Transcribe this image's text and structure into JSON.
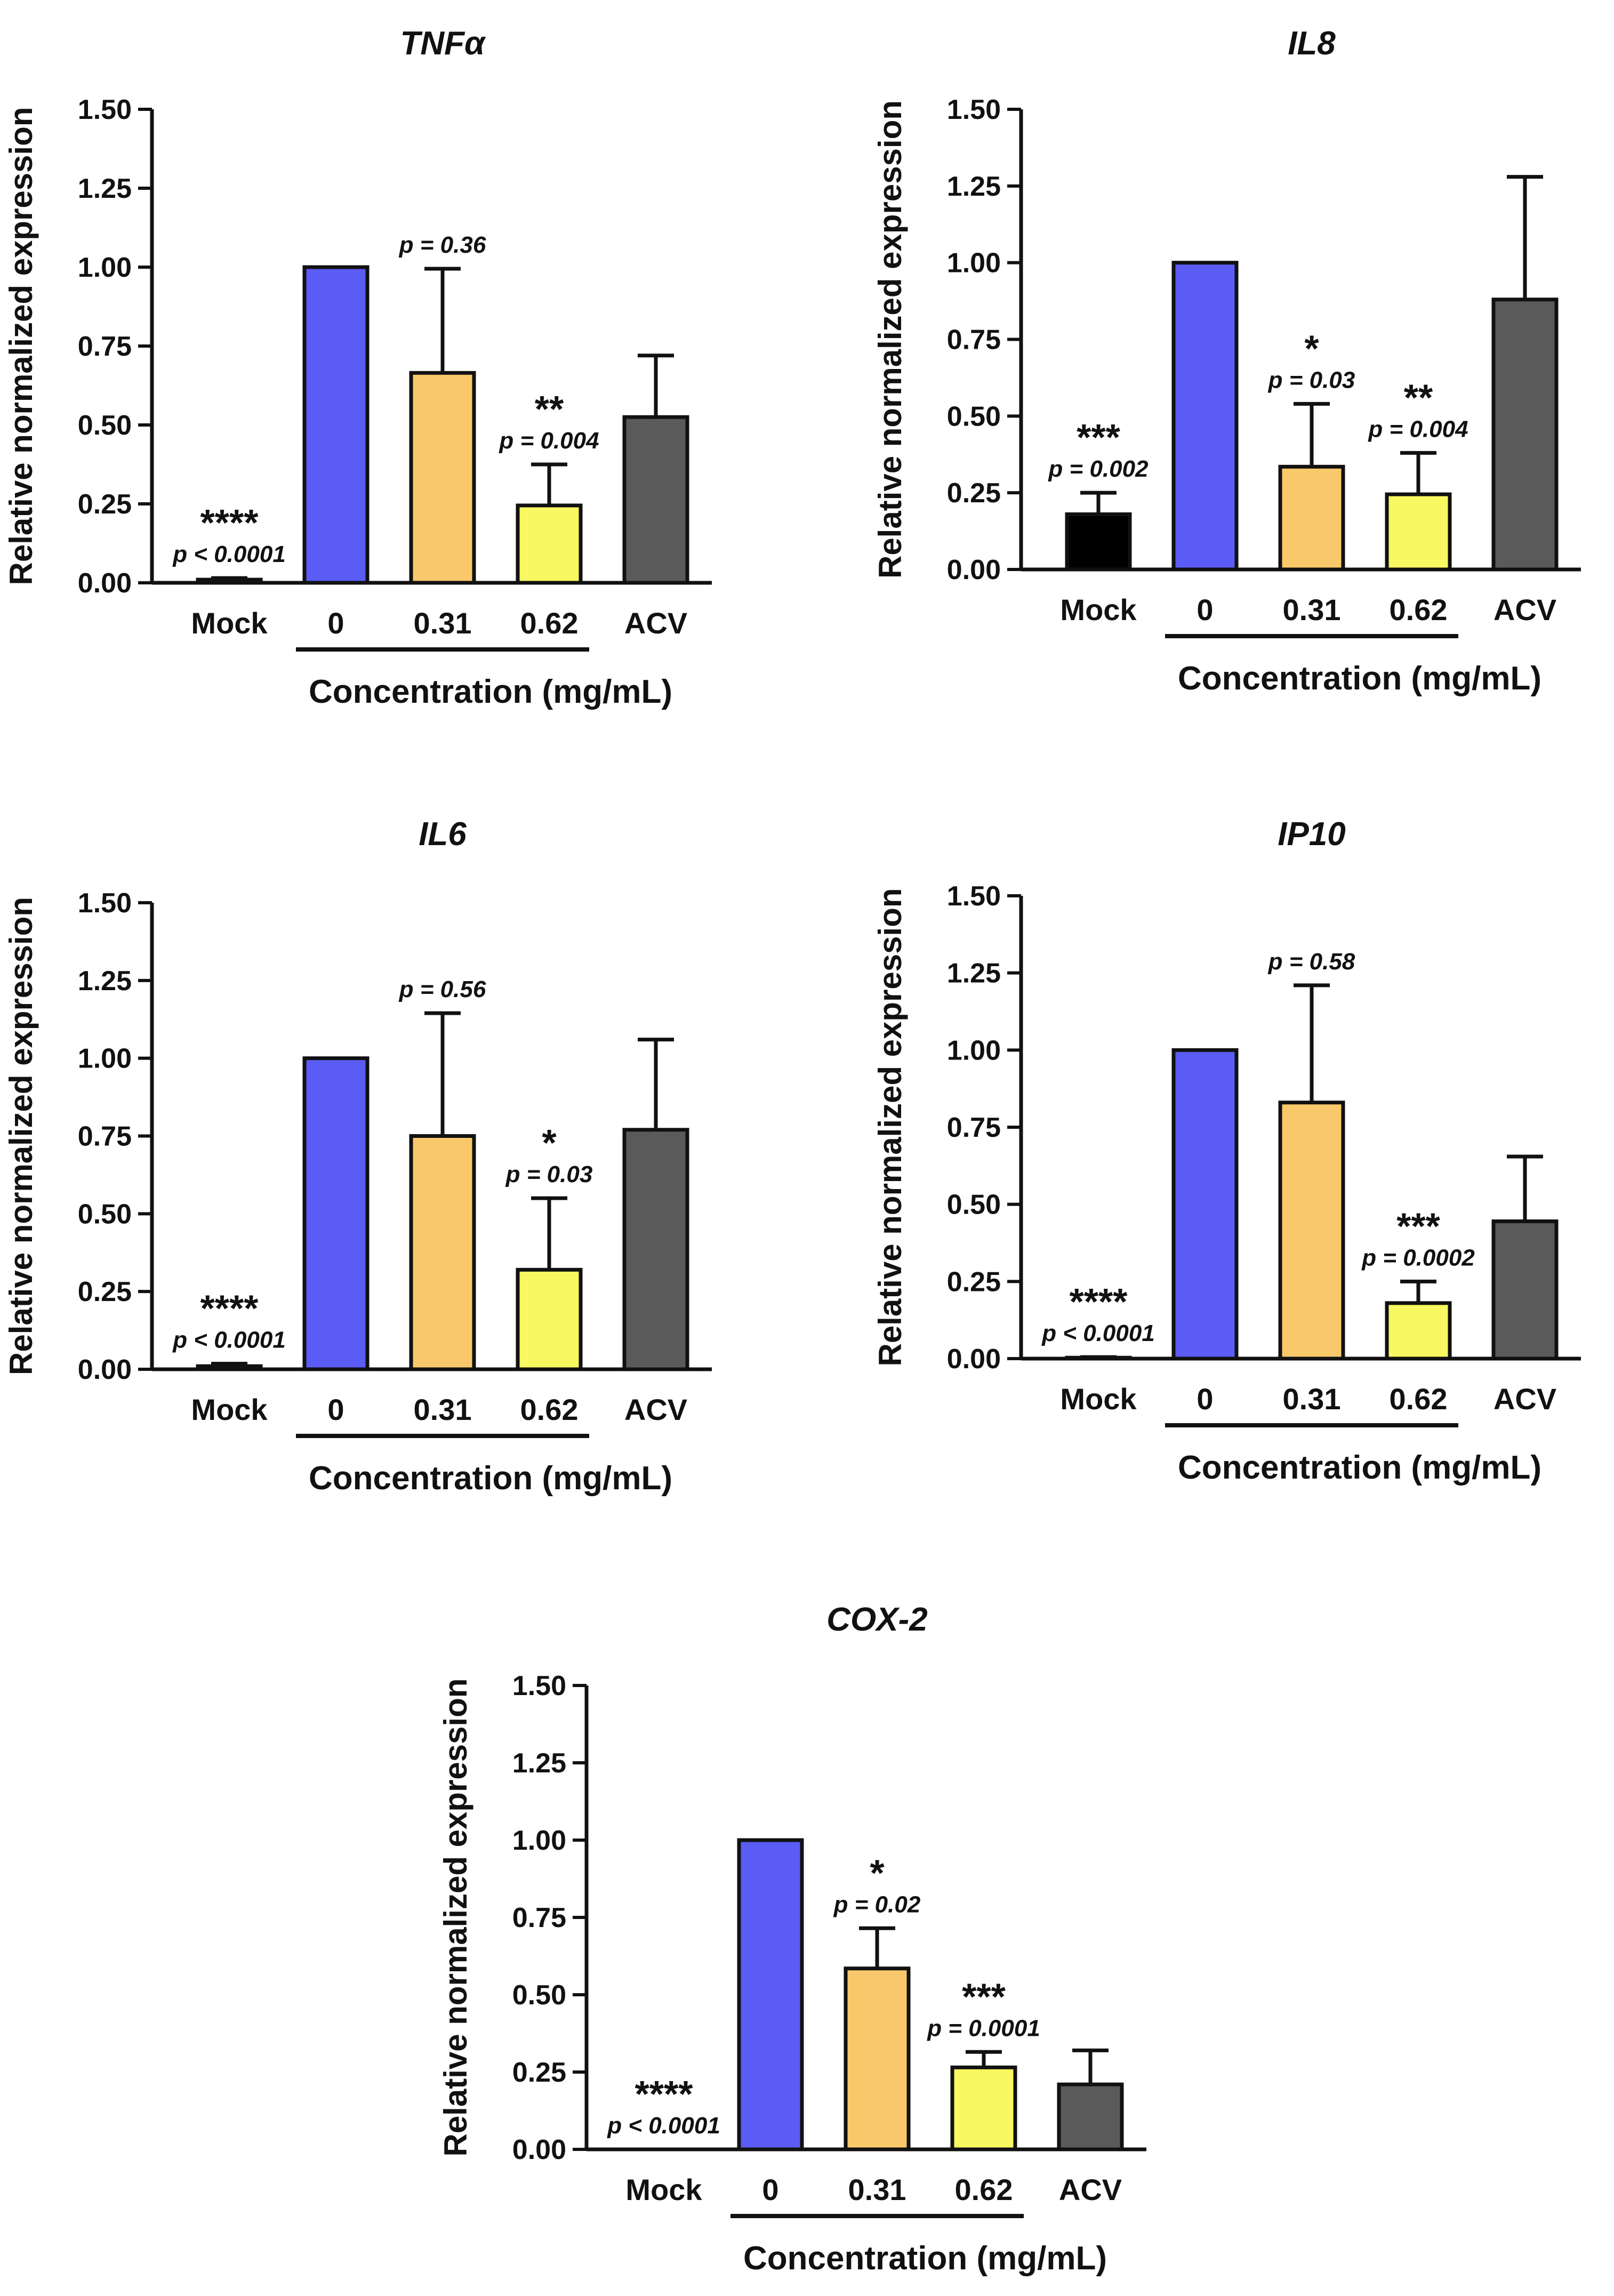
{
  "chart_data": [
    {
      "type": "bar",
      "title": "TNFα",
      "ylabel": "Relative normalized expression",
      "xlabel": "Concentration (mg/mL)",
      "ylim": [
        0,
        1.5
      ],
      "yticks": [
        "0.00",
        "0.25",
        "0.50",
        "0.75",
        "1.00",
        "1.25",
        "1.50"
      ],
      "categories": [
        "Mock",
        "0",
        "0.31",
        "0.62",
        "ACV"
      ],
      "concentration_group": [
        "0",
        "0.31",
        "0.62"
      ],
      "values": [
        0.01,
        1.0,
        0.665,
        0.245,
        0.525
      ],
      "errors": [
        0.005,
        0.0,
        0.33,
        0.13,
        0.195
      ],
      "colors": [
        "#000000",
        "#5b5bf5",
        "#f8c86a",
        "#f8f860",
        "#5a5a5a"
      ],
      "annotations": [
        {
          "category": "Mock",
          "stars": "****",
          "p": "p < 0.0001"
        },
        {
          "category": "0.31",
          "stars": "",
          "p": "p = 0.36"
        },
        {
          "category": "0.62",
          "stars": "**",
          "p": "p = 0.004"
        }
      ]
    },
    {
      "type": "bar",
      "title": "IL8",
      "ylabel": "Relative normalized expression",
      "xlabel": "Concentration (mg/mL)",
      "ylim": [
        0,
        1.5
      ],
      "yticks": [
        "0.00",
        "0.25",
        "0.50",
        "0.75",
        "1.00",
        "1.25",
        "1.50"
      ],
      "categories": [
        "Mock",
        "0",
        "0.31",
        "0.62",
        "ACV"
      ],
      "concentration_group": [
        "0",
        "0.31",
        "0.62"
      ],
      "values": [
        0.18,
        1.0,
        0.335,
        0.245,
        0.88
      ],
      "errors": [
        0.07,
        0.0,
        0.205,
        0.135,
        0.4
      ],
      "colors": [
        "#000000",
        "#5b5bf5",
        "#f8c86a",
        "#f8f860",
        "#5a5a5a"
      ],
      "annotations": [
        {
          "category": "Mock",
          "stars": "***",
          "p": "p = 0.002"
        },
        {
          "category": "0.31",
          "stars": "*",
          "p": "p = 0.03"
        },
        {
          "category": "0.62",
          "stars": "**",
          "p": "p = 0.004"
        }
      ]
    },
    {
      "type": "bar",
      "title": "IL6",
      "ylabel": "Relative normalized expression",
      "xlabel": "Concentration (mg/mL)",
      "ylim": [
        0,
        1.5
      ],
      "yticks": [
        "0.00",
        "0.25",
        "0.50",
        "0.75",
        "1.00",
        "1.25",
        "1.50"
      ],
      "categories": [
        "Mock",
        "0",
        "0.31",
        "0.62",
        "ACV"
      ],
      "concentration_group": [
        "0",
        "0.31",
        "0.62"
      ],
      "values": [
        0.01,
        1.0,
        0.75,
        0.32,
        0.77
      ],
      "errors": [
        0.008,
        0.0,
        0.395,
        0.23,
        0.29
      ],
      "colors": [
        "#000000",
        "#5b5bf5",
        "#f8c86a",
        "#f8f860",
        "#5a5a5a"
      ],
      "annotations": [
        {
          "category": "Mock",
          "stars": "****",
          "p": "p < 0.0001"
        },
        {
          "category": "0.31",
          "stars": "",
          "p": "p = 0.56"
        },
        {
          "category": "0.62",
          "stars": "*",
          "p": "p = 0.03"
        }
      ]
    },
    {
      "type": "bar",
      "title": "IP10",
      "ylabel": "Relative normalized expression",
      "xlabel": "Concentration (mg/mL)",
      "ylim": [
        0,
        1.5
      ],
      "yticks": [
        "0.00",
        "0.25",
        "0.50",
        "0.75",
        "1.00",
        "1.25",
        "1.50"
      ],
      "categories": [
        "Mock",
        "0",
        "0.31",
        "0.62",
        "ACV"
      ],
      "concentration_group": [
        "0",
        "0.31",
        "0.62"
      ],
      "values": [
        0.003,
        1.0,
        0.83,
        0.18,
        0.445
      ],
      "errors": [
        0.002,
        0.0,
        0.38,
        0.07,
        0.21
      ],
      "colors": [
        "#000000",
        "#5b5bf5",
        "#f8c86a",
        "#f8f860",
        "#5a5a5a"
      ],
      "annotations": [
        {
          "category": "Mock",
          "stars": "****",
          "p": "p < 0.0001"
        },
        {
          "category": "0.31",
          "stars": "",
          "p": "p = 0.58"
        },
        {
          "category": "0.62",
          "stars": "***",
          "p": "p = 0.0002"
        }
      ]
    },
    {
      "type": "bar",
      "title": "COX-2",
      "ylabel": "Relative normalized expression",
      "xlabel": "Concentration (mg/mL)",
      "ylim": [
        0,
        1.5
      ],
      "yticks": [
        "0.00",
        "0.25",
        "0.50",
        "0.75",
        "1.00",
        "1.25",
        "1.50"
      ],
      "categories": [
        "Mock",
        "0",
        "0.31",
        "0.62",
        "ACV"
      ],
      "concentration_group": [
        "0",
        "0.31",
        "0.62"
      ],
      "values": [
        0.0,
        1.0,
        0.585,
        0.265,
        0.21
      ],
      "errors": [
        0.0,
        0.0,
        0.13,
        0.05,
        0.11
      ],
      "colors": [
        "#000000",
        "#5b5bf5",
        "#f8c86a",
        "#f8f860",
        "#5a5a5a"
      ],
      "annotations": [
        {
          "category": "Mock",
          "stars": "****",
          "p": "p < 0.0001"
        },
        {
          "category": "0.31",
          "stars": "*",
          "p": "p = 0.02"
        },
        {
          "category": "0.62",
          "stars": "***",
          "p": "p = 0.0001"
        }
      ]
    }
  ]
}
